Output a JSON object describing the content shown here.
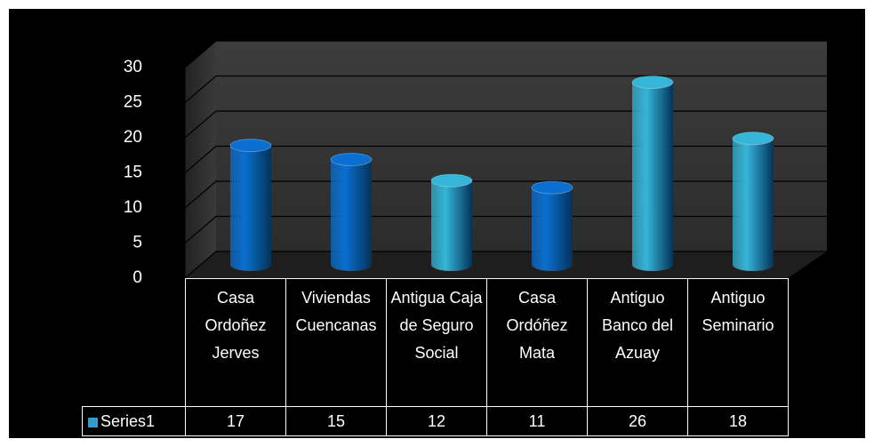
{
  "chart_data": {
    "type": "bar3d",
    "categories": [
      "Casa Ordoñez Jerves",
      "Viviendas Cuencanas",
      "Antigua Caja de Seguro Social",
      "Casa Ordóñez Mata",
      "Antiguo Banco del Azuay",
      "Antiguo Seminario"
    ],
    "series": [
      {
        "name": "Series1",
        "color": "#2c9fd0",
        "values": [
          17,
          15,
          12,
          11,
          26,
          18
        ],
        "point_colors": [
          "#0a6fd0",
          "#0a6fd0",
          "#35b5d8",
          "#0a6fd0",
          "#35b5d8",
          "#35b5d8"
        ]
      }
    ],
    "ylim": [
      0,
      30
    ],
    "yticks": [
      0,
      5,
      10,
      15,
      20,
      25,
      30
    ],
    "grid": true,
    "data_table": true
  }
}
